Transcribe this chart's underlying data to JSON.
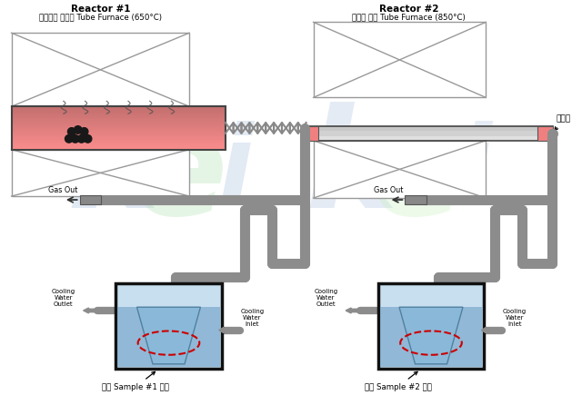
{
  "reactor1_title": "Reactor #1",
  "reactor1_subtitle": "폐타이어 열분해 Tube Furnace (650°C)",
  "reactor2_title": "Reactor #2",
  "reactor2_subtitle": "소석회 가열 Tube Furnace (850°C)",
  "soseokhoi": "소석회",
  "gas_out": "Gas Out",
  "sample1": "액상 Sample #1 제취",
  "sample2": "액상 Sample #2 제취",
  "cool_out": "Cooling\nWater\nOutlet",
  "cool_in": "Cooling\nWater\nInlet",
  "bg": "#ffffff",
  "pipe_color": "#909090",
  "pipe_dark": "#686868"
}
